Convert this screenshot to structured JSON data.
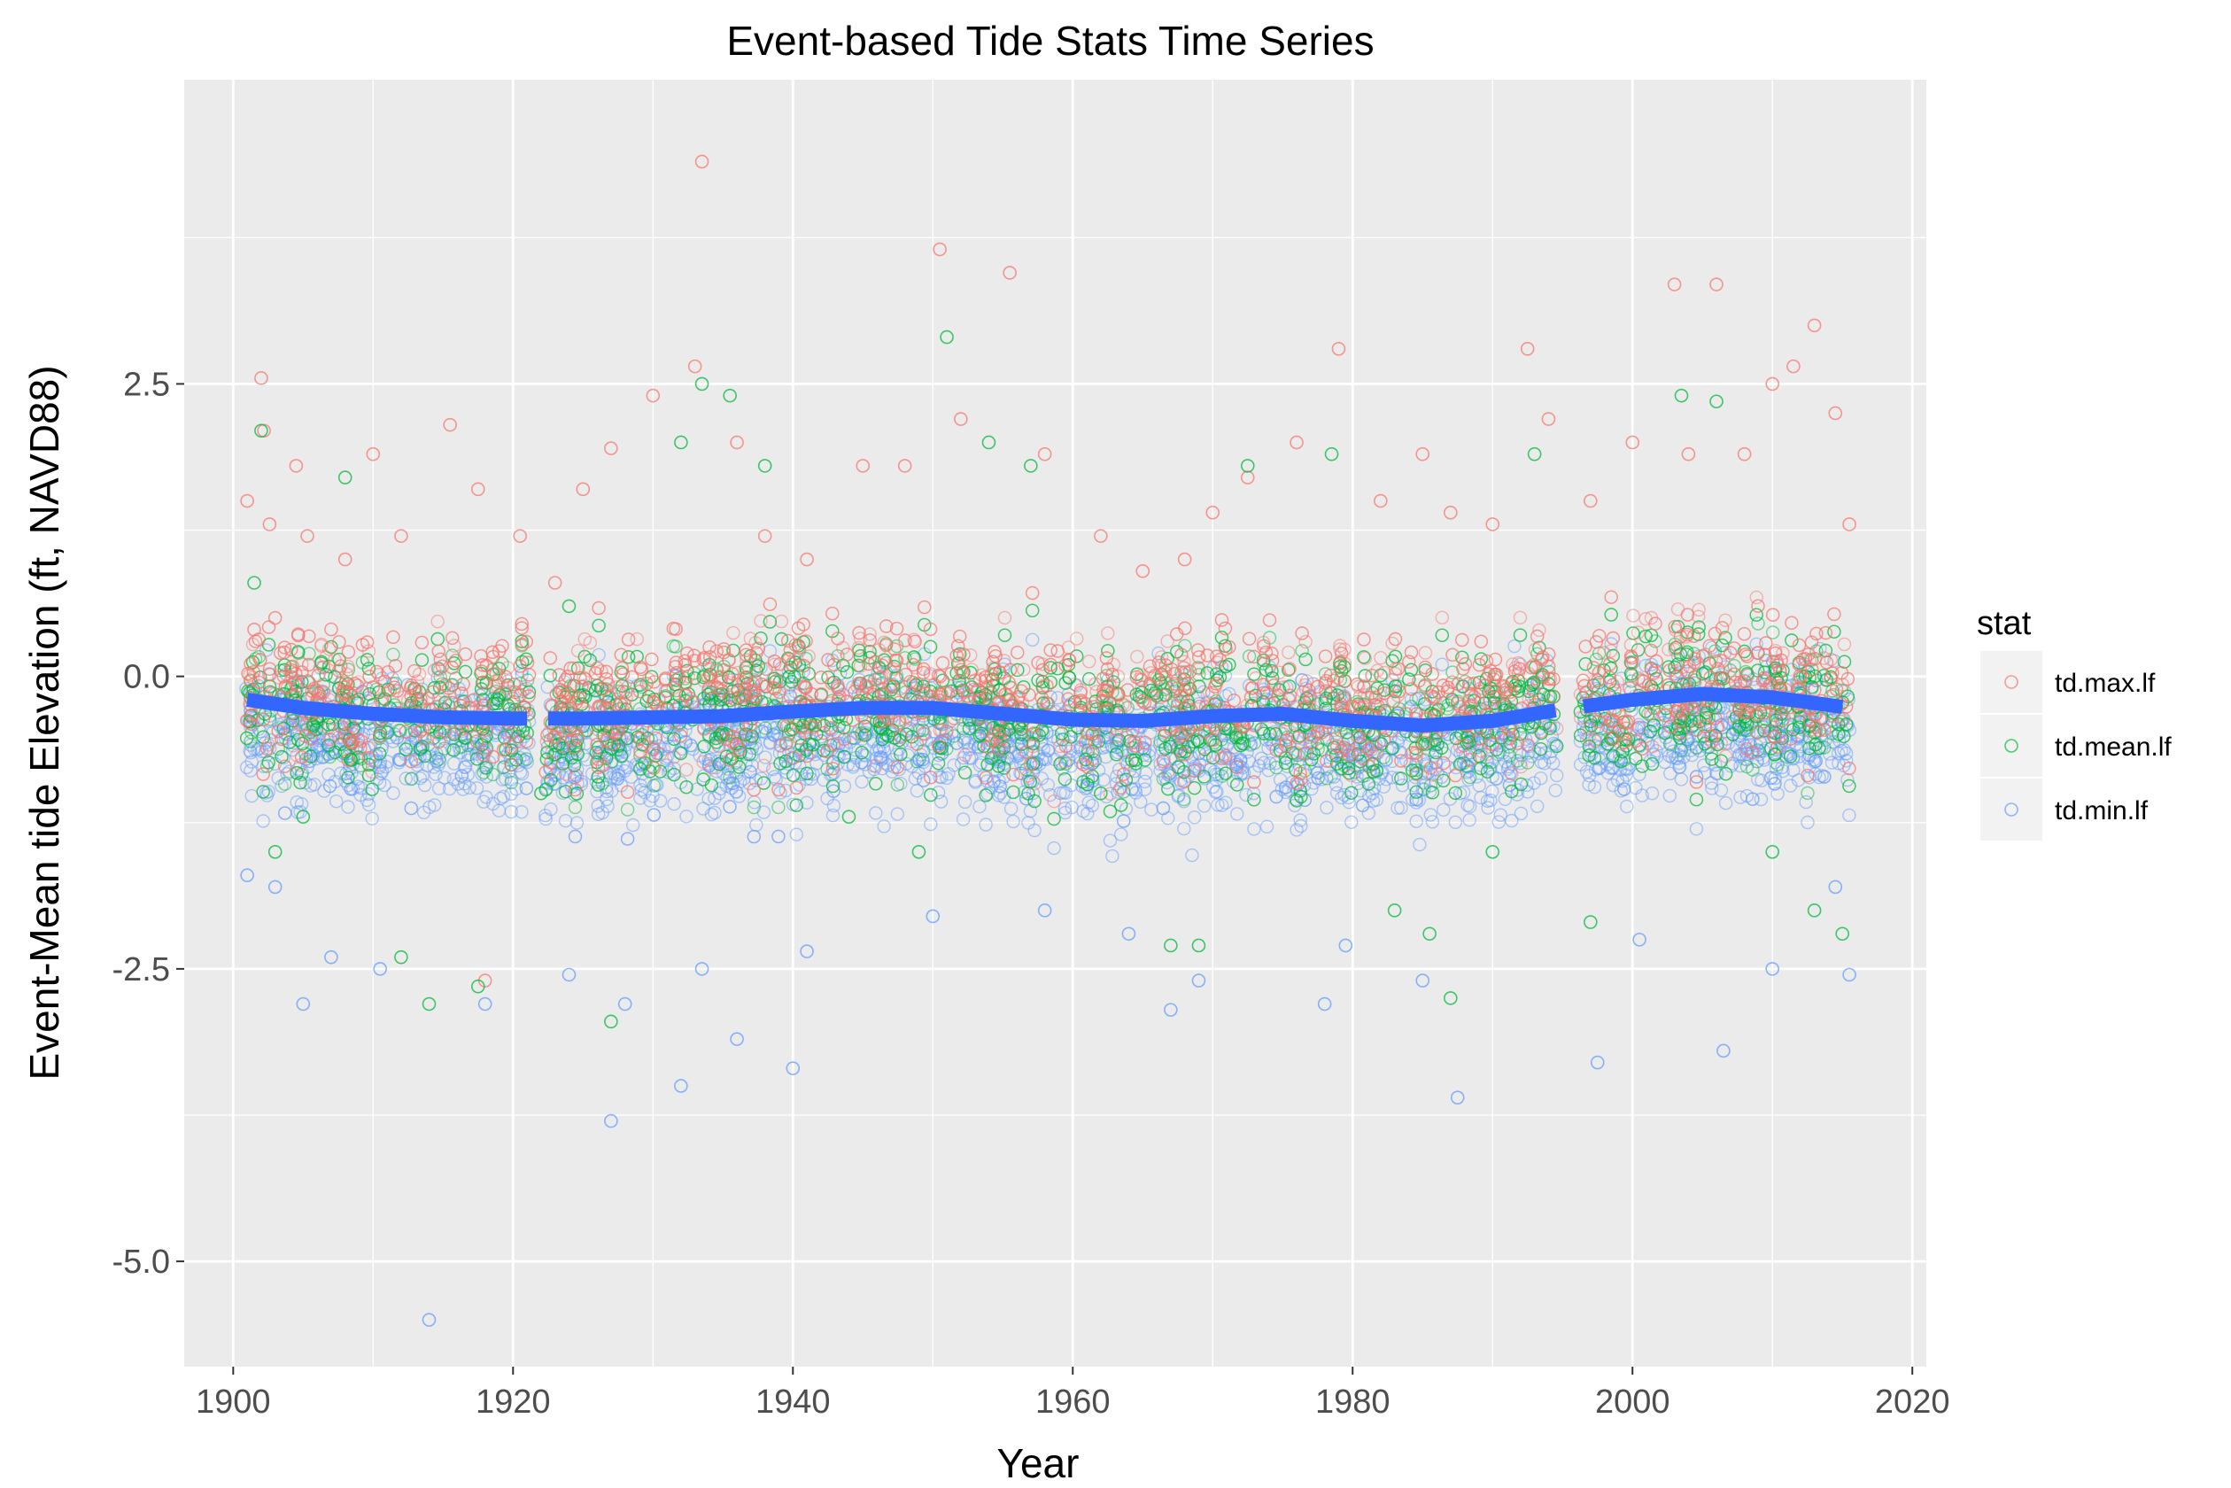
{
  "chart_data": {
    "type": "scatter",
    "title": "Event-based Tide Stats Time Series",
    "xlabel": "Year",
    "ylabel": "Event-Mean tide Elevation (ft, NAVD88)",
    "xlim": [
      1896.5,
      2021
    ],
    "ylim": [
      -5.9,
      5.1
    ],
    "x_ticks": [
      1900,
      1920,
      1940,
      1960,
      1980,
      2000,
      2020
    ],
    "x_tick_labels": [
      "1900",
      "1920",
      "1940",
      "1960",
      "1980",
      "2000",
      "2020"
    ],
    "y_ticks": [
      -5.0,
      -2.5,
      0.0,
      2.5
    ],
    "y_tick_labels": [
      "-5.0",
      "-2.5",
      "0.0",
      "2.5"
    ],
    "grid": true,
    "legend": {
      "title": "stat",
      "position": "right",
      "entries": [
        "td.max.lf",
        "td.mean.lf",
        "td.min.lf"
      ]
    },
    "colors": {
      "td.max.lf": "#F8766D",
      "td.mean.lf": "#00BA38",
      "td.min.lf": "#619CFF",
      "smooth": "#3366FF",
      "panel": "#EBEBEB",
      "grid": "#FFFFFF"
    },
    "series": [
      {
        "name": "td.max.lf",
        "x": [
          1901.0,
          1901.5,
          1902.0,
          1902.2,
          1902.6,
          1903.0,
          1904.5,
          1905.3,
          1908.0,
          1910.0,
          1912.0,
          1915.5,
          1917.5,
          1918.0,
          1920.5,
          1923.0,
          1925.0,
          1927.0,
          1930.0,
          1933.0,
          1933.5,
          1936.0,
          1938.0,
          1941.0,
          1945.0,
          1948.0,
          1950.5,
          1952.0,
          1955.5,
          1958.0,
          1962.0,
          1965.0,
          1968.0,
          1970.0,
          1972.5,
          1976.0,
          1979.0,
          1982.0,
          1985.0,
          1987.0,
          1990.0,
          1992.5,
          1994.0,
          1997.0,
          2000.0,
          2003.0,
          2004.0,
          2006.0,
          2008.0,
          2010.0,
          2011.5,
          2013.0,
          2014.5,
          2015.5
        ],
        "y": [
          1.5,
          0.4,
          2.55,
          2.1,
          1.3,
          0.5,
          1.8,
          1.2,
          1.0,
          1.9,
          1.2,
          2.15,
          1.6,
          -2.6,
          1.2,
          0.8,
          1.6,
          1.95,
          2.4,
          2.65,
          4.4,
          2.0,
          1.2,
          1.0,
          1.8,
          1.8,
          3.65,
          2.2,
          3.45,
          1.9,
          1.2,
          0.9,
          1.0,
          1.4,
          1.7,
          2.0,
          2.8,
          1.5,
          1.9,
          1.4,
          1.3,
          2.8,
          2.2,
          1.5,
          2.0,
          3.35,
          1.9,
          3.35,
          1.9,
          2.5,
          2.65,
          3.0,
          2.25,
          1.3
        ]
      },
      {
        "name": "td.mean.lf",
        "x": [
          1901.5,
          1902.0,
          1903.0,
          1905.0,
          1908.0,
          1912.0,
          1914.0,
          1917.5,
          1922.0,
          1924.0,
          1927.0,
          1932.0,
          1933.5,
          1935.5,
          1938.0,
          1944.0,
          1949.0,
          1951.0,
          1954.0,
          1957.0,
          1962.0,
          1967.0,
          1969.0,
          1972.5,
          1978.5,
          1983.0,
          1985.5,
          1987.0,
          1990.0,
          1993.0,
          1997.0,
          2003.5,
          2006.0,
          2010.0,
          2013.0,
          2015.0
        ],
        "y": [
          0.8,
          2.1,
          -1.5,
          -1.2,
          1.7,
          -2.4,
          -2.8,
          -2.65,
          -1.0,
          0.6,
          -2.95,
          2.0,
          2.5,
          2.4,
          1.8,
          -1.2,
          -1.5,
          2.9,
          2.0,
          1.8,
          -1.0,
          -2.3,
          -2.3,
          1.8,
          1.9,
          -2.0,
          -2.2,
          -2.75,
          -1.5,
          1.9,
          -2.1,
          2.4,
          2.35,
          -1.5,
          -2.0,
          -2.2
        ]
      },
      {
        "name": "td.min.lf",
        "x": [
          1901.0,
          1903.0,
          1905.0,
          1907.0,
          1910.5,
          1914.0,
          1918.0,
          1924.0,
          1927.0,
          1928.0,
          1932.0,
          1933.5,
          1936.0,
          1940.0,
          1941.0,
          1950.0,
          1958.0,
          1964.0,
          1967.0,
          1969.0,
          1978.0,
          1979.5,
          1985.0,
          1987.5,
          1997.5,
          2000.5,
          2006.5,
          2010.0,
          2014.5,
          2015.5
        ],
        "y": [
          -1.7,
          -1.8,
          -2.8,
          -2.4,
          -2.5,
          -5.5,
          -2.8,
          -2.55,
          -3.8,
          -2.8,
          -3.5,
          -2.5,
          -3.1,
          -3.35,
          -2.35,
          -2.05,
          -2.0,
          -2.2,
          -2.85,
          -2.6,
          -2.8,
          -2.3,
          -2.6,
          -3.6,
          -3.3,
          -2.25,
          -3.2,
          -2.5,
          -1.8,
          -2.55
        ]
      }
    ],
    "smooth": {
      "x": [
        1901,
        1905,
        1910,
        1915,
        1920,
        1925,
        1930,
        1935,
        1940,
        1945,
        1950,
        1955,
        1960,
        1965,
        1970,
        1975,
        1980,
        1985,
        1990,
        1995,
        2000,
        2005,
        2010,
        2015
      ],
      "y": [
        -0.2,
        -0.27,
        -0.32,
        -0.35,
        -0.36,
        -0.36,
        -0.35,
        -0.34,
        -0.3,
        -0.27,
        -0.27,
        -0.32,
        -0.37,
        -0.38,
        -0.34,
        -0.32,
        -0.38,
        -0.42,
        -0.38,
        -0.28,
        -0.2,
        -0.15,
        -0.18,
        -0.26
      ]
    },
    "gaps": [
      [
        1921.2,
        1922.3
      ],
      [
        1994.8,
        1996.2
      ]
    ]
  }
}
